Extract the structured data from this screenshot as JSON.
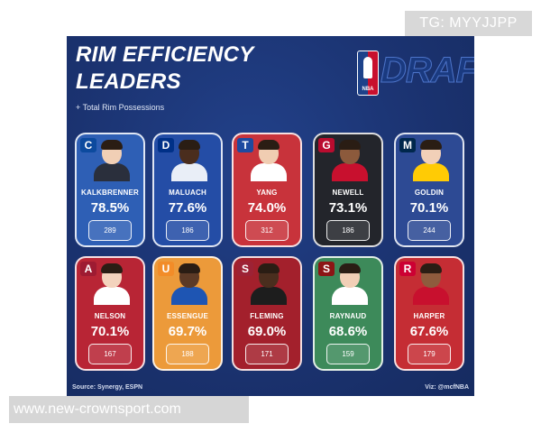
{
  "header": {
    "title_line1": "RIM EFFICIENCY",
    "title_line2": "LEADERS",
    "subtitle": "+ Total Rim Possessions",
    "logo_small_text": "NBA",
    "logo_word": "DRAFT"
  },
  "players": [
    {
      "name": "KALKBRENNER",
      "pct": "78.5%",
      "possessions": "289",
      "team_letter": "C",
      "card_color": "#2e5fb5",
      "team_color": "#0c4a9e",
      "skin": "#f1cfb5",
      "jersey": "#2a2f3c"
    },
    {
      "name": "MALUACH",
      "pct": "77.6%",
      "possessions": "186",
      "team_letter": "D",
      "card_color": "#244da6",
      "team_color": "#003087",
      "skin": "#4a2d1d",
      "jersey": "#e9eef7"
    },
    {
      "name": "YANG",
      "pct": "74.0%",
      "possessions": "312",
      "team_letter": "T",
      "card_color": "#c8333b",
      "team_color": "#1e4aa0",
      "skin": "#f0cdb2",
      "jersey": "#ffffff"
    },
    {
      "name": "NEWELL",
      "pct": "73.1%",
      "possessions": "186",
      "team_letter": "G",
      "card_color": "#23252b",
      "team_color": "#ba0c2f",
      "skin": "#8c5a3c",
      "jersey": "#c8102e"
    },
    {
      "name": "GOLDIN",
      "pct": "70.1%",
      "possessions": "244",
      "team_letter": "M",
      "card_color": "#2d4a94",
      "team_color": "#00274c",
      "skin": "#f1d0b8",
      "jersey": "#ffcb05"
    },
    {
      "name": "NELSON",
      "pct": "70.1%",
      "possessions": "167",
      "team_letter": "A",
      "card_color": "#b82535",
      "team_color": "#9e1b32",
      "skin": "#f3d3bd",
      "jersey": "#ffffff"
    },
    {
      "name": "ESSENGUE",
      "pct": "69.7%",
      "possessions": "188",
      "team_letter": "U",
      "card_color": "#ec9a3a",
      "team_color": "#f28c28",
      "skin": "#5c3a26",
      "jersey": "#1e55b3"
    },
    {
      "name": "FLEMING",
      "pct": "69.0%",
      "possessions": "171",
      "team_letter": "S",
      "card_color": "#a3202c",
      "team_color": "#9d2235",
      "skin": "#4a2e1e",
      "jersey": "#1d1d1d"
    },
    {
      "name": "RAYNAUD",
      "pct": "68.6%",
      "possessions": "159",
      "team_letter": "S",
      "card_color": "#3d8a5a",
      "team_color": "#8c1515",
      "skin": "#f1cfb6",
      "jersey": "#ffffff"
    },
    {
      "name": "HARPER",
      "pct": "67.6%",
      "possessions": "179",
      "team_letter": "R",
      "card_color": "#c52d34",
      "team_color": "#cc0033",
      "skin": "#8e5b3d",
      "jersey": "#c8102e"
    }
  ],
  "footer": {
    "source": "Source: Synergy, ESPN",
    "viz": "Viz: @mcfNBA"
  },
  "watermarks": {
    "top": "TG: MYYJJPP",
    "bottom": "www.new-crownsport.com"
  }
}
